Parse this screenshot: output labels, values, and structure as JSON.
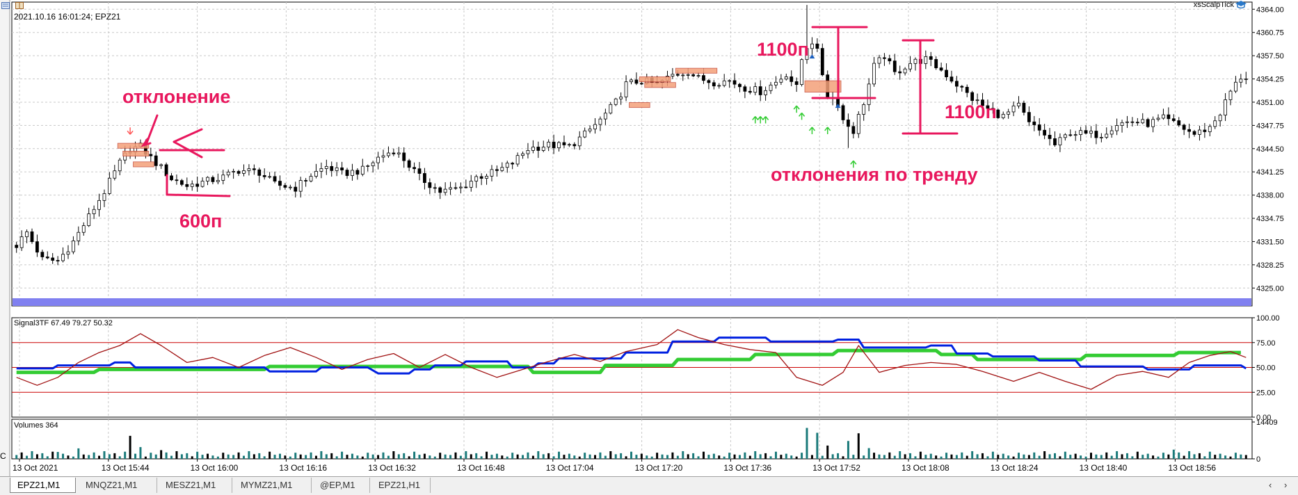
{
  "header": {
    "info": "2021.10.16 16:01:24; EPZ21",
    "indicator_name": "xsScalpTick",
    "edge_char": "C"
  },
  "tabs": [
    {
      "label": "EPZ21,M1",
      "active": true
    },
    {
      "label": "MNQZ21,M1",
      "active": false
    },
    {
      "label": "MESZ21,M1",
      "active": false
    },
    {
      "label": "MYMZ21,M1",
      "active": false
    },
    {
      "label": "@EP,M1",
      "active": false
    },
    {
      "label": "EPZ21,H1",
      "active": false
    }
  ],
  "annotations": {
    "deviation": "отклонение",
    "p600": "600п",
    "p1100_top": "1100п",
    "p1100_right": "1100п",
    "trend_deviations": "отклонения по тренду"
  },
  "colors": {
    "bull_candle": "#ffffff",
    "bear_candle": "#000000",
    "candle_outline": "#000000",
    "grid": "#c8c8c8",
    "annotation": "#e8175d",
    "separator_bar": "#8080f0",
    "signal_red_line": "#cc0000",
    "signal_dark_red": "#a01010",
    "signal_blue": "#0020e0",
    "signal_green": "#33cc33",
    "volume_teal": "#1a7a7a",
    "volume_black": "#000000",
    "arrow_up": "#33cc33",
    "arrow_down": "#ff5a5a"
  },
  "chart_data": [
    {
      "type": "candlestick",
      "title": "",
      "symbol": "EPZ21",
      "timeframe": "M1",
      "ylim": [
        4322.5,
        4365.0
      ],
      "y_ticks": [
        "4364.00",
        "4360.75",
        "4357.50",
        "4354.25",
        "4351.00",
        "4347.75",
        "4344.50",
        "4341.25",
        "4338.00",
        "4334.75",
        "4331.50",
        "4328.25",
        "4325.00"
      ],
      "x_ticks": [
        "13 Oct 2021",
        "13 Oct 15:44",
        "13 Oct 16:00",
        "13 Oct 16:16",
        "13 Oct 16:32",
        "13 Oct 16:48",
        "13 Oct 17:04",
        "13 Oct 17:20",
        "13 Oct 17:36",
        "13 Oct 17:52",
        "13 Oct 18:08",
        "13 Oct 18:24",
        "13 Oct 18:40",
        "13 Oct 18:56"
      ],
      "anchors": [
        [
          0,
          4331.0
        ],
        [
          2,
          4332.8
        ],
        [
          5,
          4329.0
        ],
        [
          8,
          4328.8
        ],
        [
          11,
          4331.5
        ],
        [
          14,
          4335.0
        ],
        [
          17,
          4338.5
        ],
        [
          20,
          4342.5
        ],
        [
          22,
          4344.5
        ],
        [
          24,
          4344.8
        ],
        [
          26,
          4343.2
        ],
        [
          28,
          4341.8
        ],
        [
          30,
          4340.3
        ],
        [
          33,
          4339.3
        ],
        [
          36,
          4339.8
        ],
        [
          40,
          4340.5
        ],
        [
          43,
          4341.5
        ],
        [
          47,
          4341.2
        ],
        [
          50,
          4339.5
        ],
        [
          54,
          4339.0
        ],
        [
          57,
          4340.8
        ],
        [
          60,
          4342.0
        ],
        [
          63,
          4341.0
        ],
        [
          67,
          4341.5
        ],
        [
          70,
          4343.2
        ],
        [
          73,
          4344.3
        ],
        [
          75,
          4343.0
        ],
        [
          78,
          4340.5
        ],
        [
          82,
          4338.5
        ],
        [
          86,
          4339.0
        ],
        [
          89,
          4340.5
        ],
        [
          93,
          4341.3
        ],
        [
          96,
          4342.5
        ],
        [
          99,
          4344.5
        ],
        [
          103,
          4345.0
        ],
        [
          107,
          4344.8
        ],
        [
          110,
          4346.5
        ],
        [
          113,
          4348.5
        ],
        [
          116,
          4351.0
        ],
        [
          118,
          4353.5
        ],
        [
          121,
          4354.0
        ],
        [
          124,
          4353.5
        ],
        [
          127,
          4354.8
        ],
        [
          130,
          4355.3
        ],
        [
          132,
          4354.3
        ],
        [
          135,
          4353.8
        ],
        [
          138,
          4354.0
        ],
        [
          141,
          4353.0
        ],
        [
          144,
          4352.5
        ],
        [
          147,
          4353.8
        ],
        [
          149,
          4355.0
        ],
        [
          151,
          4353.0
        ],
        [
          153,
          4361.0
        ],
        [
          155,
          4358.0
        ],
        [
          157,
          4352.0
        ],
        [
          159,
          4351.0
        ],
        [
          160,
          4348.5
        ],
        [
          162,
          4347.0
        ],
        [
          164,
          4351.0
        ],
        [
          166,
          4356.0
        ],
        [
          168,
          4357.5
        ],
        [
          170,
          4355.0
        ],
        [
          173,
          4356.5
        ],
        [
          176,
          4357.0
        ],
        [
          179,
          4355.5
        ],
        [
          182,
          4353.5
        ],
        [
          185,
          4351.5
        ],
        [
          188,
          4350.0
        ],
        [
          191,
          4349.0
        ],
        [
          194,
          4350.5
        ],
        [
          196,
          4348.0
        ],
        [
          199,
          4346.5
        ],
        [
          201,
          4345.0
        ],
        [
          204,
          4346.8
        ],
        [
          207,
          4346.5
        ],
        [
          210,
          4346.5
        ],
        [
          213,
          4348.0
        ],
        [
          216,
          4348.3
        ],
        [
          219,
          4348.0
        ],
        [
          222,
          4348.7
        ],
        [
          225,
          4347.7
        ],
        [
          228,
          4346.5
        ],
        [
          231,
          4347.5
        ],
        [
          233,
          4349.5
        ],
        [
          235,
          4352.5
        ],
        [
          237,
          4354.5
        ]
      ]
    },
    {
      "type": "line",
      "name": "Signal3TF",
      "header_values": "Signal3TF 67.49 79.27 50.32",
      "ylim": [
        0,
        100
      ],
      "y_ticks": [
        "100.00",
        "75.00",
        "50.00",
        "25.00",
        "0.00"
      ],
      "levels": [
        75,
        50,
        25
      ],
      "series": [
        {
          "name": "green",
          "points": [
            [
              0,
              45
            ],
            [
              15,
              45
            ],
            [
              16,
              48
            ],
            [
              48,
              48
            ],
            [
              49,
              51
            ],
            [
              99,
              51
            ],
            [
              100,
              45
            ],
            [
              113,
              45
            ],
            [
              114,
              52
            ],
            [
              127,
              52
            ],
            [
              128,
              58
            ],
            [
              142,
              58
            ],
            [
              143,
              63
            ],
            [
              158,
              63
            ],
            [
              159,
              67
            ],
            [
              178,
              67
            ],
            [
              179,
              63
            ],
            [
              185,
              63
            ],
            [
              186,
              58
            ],
            [
              206,
              58
            ],
            [
              207,
              62
            ],
            [
              224,
              62
            ],
            [
              225,
              65
            ],
            [
              237,
              65
            ]
          ]
        },
        {
          "name": "blue",
          "points": [
            [
              0,
              49
            ],
            [
              7,
              49
            ],
            [
              8,
              52
            ],
            [
              18,
              52
            ],
            [
              19,
              55
            ],
            [
              22,
              55
            ],
            [
              23,
              50
            ],
            [
              48,
              50
            ],
            [
              49,
              46
            ],
            [
              58,
              46
            ],
            [
              59,
              50
            ],
            [
              68,
              50
            ],
            [
              70,
              44
            ],
            [
              76,
              44
            ],
            [
              77,
              48
            ],
            [
              80,
              48
            ],
            [
              81,
              52
            ],
            [
              86,
              52
            ],
            [
              87,
              56
            ],
            [
              95,
              56
            ],
            [
              96,
              50
            ],
            [
              100,
              50
            ],
            [
              101,
              54
            ],
            [
              104,
              54
            ],
            [
              105,
              59
            ],
            [
              117,
              59
            ],
            [
              118,
              65
            ],
            [
              126,
              65
            ],
            [
              127,
              76
            ],
            [
              135,
              76
            ],
            [
              136,
              80
            ],
            [
              145,
              80
            ],
            [
              146,
              76
            ],
            [
              158,
              76
            ],
            [
              159,
              78
            ],
            [
              163,
              78
            ],
            [
              164,
              70
            ],
            [
              176,
              70
            ],
            [
              177,
              72
            ],
            [
              181,
              72
            ],
            [
              182,
              64
            ],
            [
              188,
              64
            ],
            [
              189,
              61
            ],
            [
              197,
              61
            ],
            [
              198,
              57
            ],
            [
              205,
              57
            ],
            [
              206,
              51
            ],
            [
              218,
              51
            ],
            [
              219,
              48
            ],
            [
              227,
              48
            ],
            [
              228,
              52
            ],
            [
              237,
              52
            ],
            [
              238,
              49
            ]
          ]
        },
        {
          "name": "darkred",
          "points": [
            [
              0,
              40
            ],
            [
              4,
              32
            ],
            [
              8,
              40
            ],
            [
              12,
              55
            ],
            [
              16,
              65
            ],
            [
              20,
              72
            ],
            [
              24,
              84
            ],
            [
              28,
              72
            ],
            [
              33,
              55
            ],
            [
              38,
              60
            ],
            [
              43,
              50
            ],
            [
              48,
              62
            ],
            [
              53,
              70
            ],
            [
              58,
              60
            ],
            [
              63,
              48
            ],
            [
              68,
              58
            ],
            [
              73,
              64
            ],
            [
              78,
              50
            ],
            [
              83,
              63
            ],
            [
              88,
              50
            ],
            [
              93,
              40
            ],
            [
              98,
              48
            ],
            [
              103,
              56
            ],
            [
              108,
              63
            ],
            [
              113,
              56
            ],
            [
              118,
              66
            ],
            [
              124,
              73
            ],
            [
              128,
              88
            ],
            [
              132,
              80
            ],
            [
              137,
              73
            ],
            [
              142,
              68
            ],
            [
              147,
              65
            ],
            [
              151,
              40
            ],
            [
              156,
              32
            ],
            [
              160,
              45
            ],
            [
              163,
              72
            ],
            [
              167,
              45
            ],
            [
              172,
              52
            ],
            [
              177,
              55
            ],
            [
              182,
              53
            ],
            [
              187,
              46
            ],
            [
              193,
              36
            ],
            [
              198,
              45
            ],
            [
              203,
              36
            ],
            [
              208,
              28
            ],
            [
              213,
              42
            ],
            [
              218,
              46
            ],
            [
              223,
              40
            ],
            [
              227,
              55
            ],
            [
              231,
              62
            ],
            [
              235,
              66
            ],
            [
              238,
              60
            ]
          ]
        }
      ]
    },
    {
      "type": "bar",
      "name": "Volumes",
      "header_values": "Volumes 364",
      "ylim": [
        0,
        14409
      ],
      "y_ticks": [
        "14409",
        "0"
      ],
      "pattern": [
        1500,
        2500,
        1200,
        3000,
        1800,
        2200,
        1000,
        2800,
        1600,
        2000,
        1300,
        900,
        2400,
        1700
      ],
      "spikes": [
        [
          8,
          2700
        ],
        [
          12,
          4100
        ],
        [
          22,
          9000
        ],
        [
          24,
          4600
        ],
        [
          28,
          3400
        ],
        [
          153,
          12100
        ],
        [
          155,
          10200
        ],
        [
          157,
          5200
        ],
        [
          161,
          7000
        ],
        [
          163,
          10000
        ],
        [
          165,
          4200
        ],
        [
          224,
          3600
        ]
      ]
    }
  ]
}
